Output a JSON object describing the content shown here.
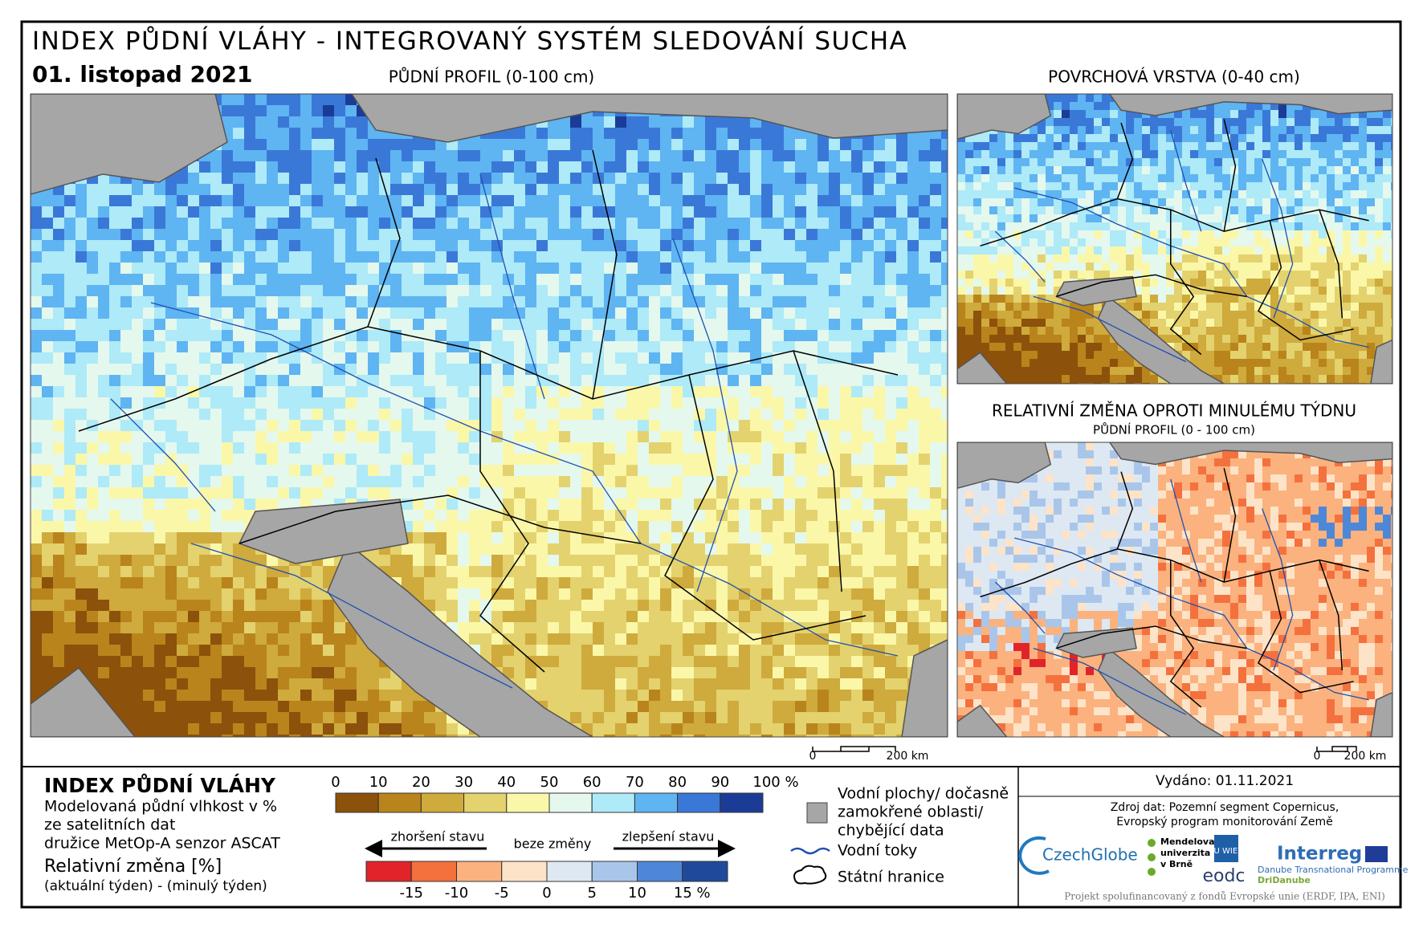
{
  "header": {
    "title": "INDEX PŮDNÍ VLÁHY - INTEGROVANÝ SYSTÉM SLEDOVÁNÍ SUCHA",
    "date": "01. listopad 2021"
  },
  "maps": {
    "main": {
      "title": "PŮDNÍ PROFIL (0-100 cm)"
    },
    "surface": {
      "title": "POVRCHOVÁ VRSTVA (0-40 cm)"
    },
    "change": {
      "title": "RELATIVNÍ ZMĚNA OPROTI MINULÉMU TÝDNU",
      "subtitle": "PŮDNÍ PROFIL (0 - 100 cm)"
    }
  },
  "scalebar": {
    "labels": [
      "0",
      "200 km"
    ]
  },
  "legend": {
    "title": "INDEX PŮDNÍ VLÁHY",
    "description": [
      "Modelovaná půdní vlhkost v %",
      "ze satelitních dat",
      "družice MetOp-A senzor ASCAT"
    ],
    "change_title": "Relativní změna [%]",
    "change_description": "(aktuální týden) - (minulý týden)",
    "index_scale": {
      "labels": [
        "0",
        "10",
        "20",
        "30",
        "40",
        "50",
        "60",
        "70",
        "80",
        "90",
        "100 %"
      ],
      "colors": [
        "#8c510a",
        "#b9841c",
        "#cfaa3c",
        "#e3d26e",
        "#fbf7a9",
        "#e4f8ee",
        "#aeeaf8",
        "#5fb4f2",
        "#3a78d8",
        "#1b3c96"
      ]
    },
    "change_scale": {
      "arrows": [
        "zhoršení stavu",
        "beze změny",
        "zlepšení stavu"
      ],
      "labels": [
        "-15",
        "-10",
        "-5",
        "0",
        "5",
        "10",
        "15 %"
      ],
      "colors": [
        "#e0242a",
        "#f4713e",
        "#fbb27e",
        "#fde3c8",
        "#dde8f2",
        "#a9c6ea",
        "#4f87d8",
        "#1f4a9c"
      ]
    },
    "symbols": {
      "water": [
        "Vodní plochy/ dočasně",
        "zamokřené oblasti/",
        "chybějící data"
      ],
      "rivers": "Vodní toky",
      "borders": "Státní hranice"
    }
  },
  "footer": {
    "issued": "Vydáno: 01.11.2021",
    "source": [
      "Zdroj dat: Pozemní segment Copernicus,",
      "Evropský program monitorování Země"
    ],
    "logos": {
      "czechglobe": "CzechGlobe",
      "mendelu": [
        "Mendelova",
        "univerzita",
        "v Brně"
      ],
      "tuwien": "TU WIEN",
      "eodc": "eodc",
      "interreg": "Interreg",
      "programme": "Danube Transnational Programme",
      "project": "DriDanube"
    },
    "funding": "Projekt spolufinancovaný z fondů Evropské unie (ERDF, IPA, ENI)"
  }
}
